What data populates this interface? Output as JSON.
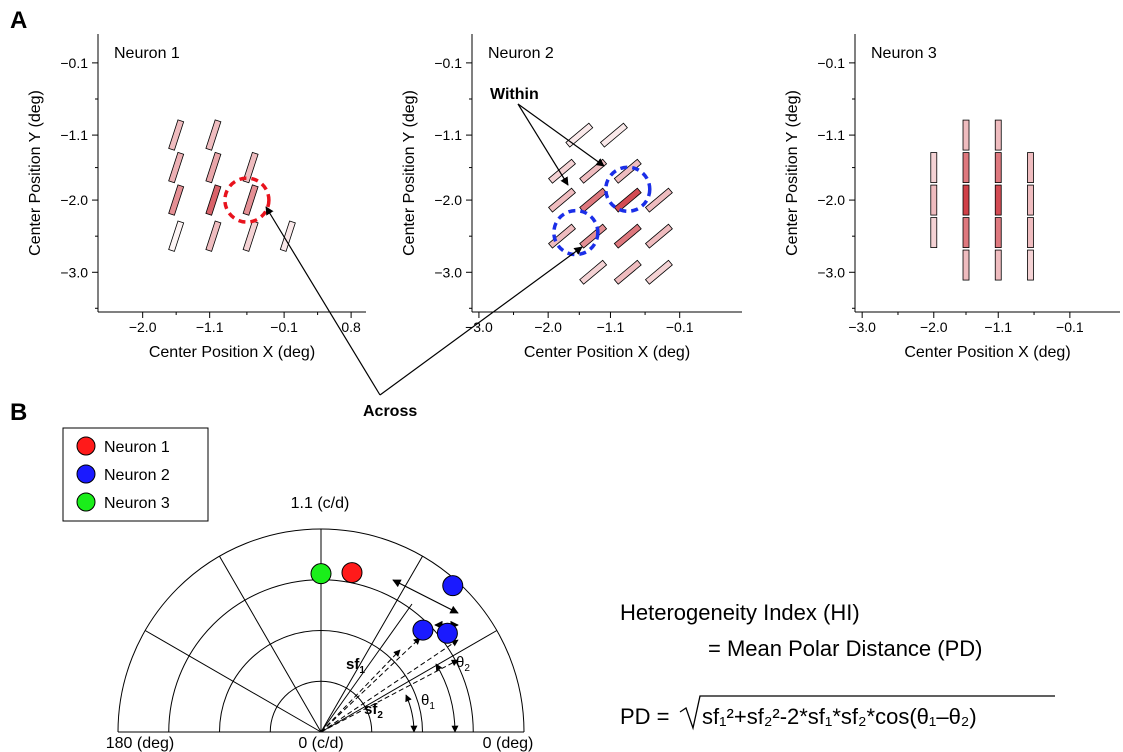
{
  "panel_labels": {
    "a": "A",
    "b": "B"
  },
  "annotations": {
    "within": "Within",
    "across": "Across"
  },
  "chart_data": [
    {
      "type": "scatter",
      "title": "Neuron 1",
      "xlabel": "Center Position X (deg)",
      "ylabel": "Center Position Y (deg)",
      "xticks": [
        "−2.0",
        "−1.1",
        "−0.1",
        "0.8"
      ],
      "yticks": [
        "−0.1",
        "−1.1",
        "−2.0",
        "−3.0"
      ],
      "xlim": [
        -2.6,
        1.0
      ],
      "ylim": [
        -3.55,
        0.3
      ],
      "bar_color": "#e8a5a5",
      "points": [
        {
          "x": -1.55,
          "y": -1.1,
          "ori": 18,
          "level": 0.3
        },
        {
          "x": -1.05,
          "y": -1.1,
          "ori": 18,
          "level": 0.3
        },
        {
          "x": -1.55,
          "y": -1.55,
          "ori": 18,
          "level": 0.35
        },
        {
          "x": -1.05,
          "y": -1.55,
          "ori": 18,
          "level": 0.4
        },
        {
          "x": -0.55,
          "y": -1.55,
          "ori": 18,
          "level": 0.3
        },
        {
          "x": -1.55,
          "y": -2.0,
          "ori": 18,
          "level": 0.5
        },
        {
          "x": -1.05,
          "y": -2.0,
          "ori": 18,
          "level": 0.7
        },
        {
          "x": -0.55,
          "y": -2.0,
          "ori": 18,
          "level": 0.5
        },
        {
          "x": -1.55,
          "y": -2.5,
          "ori": 18,
          "level": 0.05
        },
        {
          "x": -1.05,
          "y": -2.5,
          "ori": 18,
          "level": 0.3
        },
        {
          "x": -0.55,
          "y": -2.5,
          "ori": 18,
          "level": 0.2
        },
        {
          "x": -0.05,
          "y": -2.5,
          "ori": 18,
          "level": 0.1
        }
      ],
      "circles": [
        {
          "x": -0.6,
          "y": -2.0,
          "color": "#e8131d"
        }
      ]
    },
    {
      "type": "scatter",
      "title": "Neuron 2",
      "xlabel": "Center Position X (deg)",
      "ylabel": "Center Position Y (deg)",
      "xticks": [
        "−3.0",
        "−2.0",
        "−1.1",
        "−0.1"
      ],
      "yticks": [
        "−0.1",
        "−1.1",
        "−2.0",
        "−3.0"
      ],
      "xlim": [
        -3.1,
        0.8
      ],
      "ylim": [
        -3.55,
        0.3
      ],
      "bar_color": "#e8a5a5",
      "points": [
        {
          "x": -1.55,
          "y": -1.1,
          "ori": 50,
          "level": 0.1
        },
        {
          "x": -1.05,
          "y": -1.1,
          "ori": 50,
          "level": 0.1
        },
        {
          "x": -1.8,
          "y": -1.6,
          "ori": 50,
          "level": 0.2
        },
        {
          "x": -1.35,
          "y": -1.6,
          "ori": 50,
          "level": 0.3
        },
        {
          "x": -0.85,
          "y": -1.6,
          "ori": 50,
          "level": 0.3
        },
        {
          "x": -1.8,
          "y": -2.0,
          "ori": 50,
          "level": 0.3
        },
        {
          "x": -1.35,
          "y": -2.0,
          "ori": 50,
          "level": 0.6
        },
        {
          "x": -0.85,
          "y": -2.0,
          "ori": 50,
          "level": 0.8
        },
        {
          "x": -0.4,
          "y": -2.0,
          "ori": 50,
          "level": 0.3
        },
        {
          "x": -1.8,
          "y": -2.5,
          "ori": 50,
          "level": 0.3
        },
        {
          "x": -1.35,
          "y": -2.5,
          "ori": 50,
          "level": 0.5
        },
        {
          "x": -0.85,
          "y": -2.5,
          "ori": 50,
          "level": 0.6
        },
        {
          "x": -0.4,
          "y": -2.5,
          "ori": 50,
          "level": 0.3
        },
        {
          "x": -1.35,
          "y": -3.0,
          "ori": 50,
          "level": 0.2
        },
        {
          "x": -0.85,
          "y": -3.0,
          "ori": 50,
          "level": 0.3
        },
        {
          "x": -0.4,
          "y": -3.0,
          "ori": 50,
          "level": 0.2
        }
      ],
      "circles": [
        {
          "x": -0.85,
          "y": -1.85,
          "color": "#1a2ee8"
        },
        {
          "x": -1.6,
          "y": -2.45,
          "color": "#1a2ee8"
        }
      ]
    },
    {
      "type": "scatter",
      "title": "Neuron 3",
      "xlabel": "Center Position X (deg)",
      "ylabel": "Center Position Y (deg)",
      "xticks": [
        "−3.0",
        "−2.0",
        "−1.1",
        "−0.1"
      ],
      "yticks": [
        "−0.1",
        "−1.1",
        "−2.0",
        "−3.0"
      ],
      "xlim": [
        -3.1,
        0.6
      ],
      "ylim": [
        -3.55,
        0.3
      ],
      "bar_color": "#e8a5a5",
      "points": [
        {
          "x": -1.55,
          "y": -1.1,
          "ori": 0,
          "level": 0.3
        },
        {
          "x": -1.1,
          "y": -1.1,
          "ori": 0,
          "level": 0.3
        },
        {
          "x": -2.0,
          "y": -1.55,
          "ori": 0,
          "level": 0.2
        },
        {
          "x": -1.55,
          "y": -1.55,
          "ori": 0,
          "level": 0.6
        },
        {
          "x": -1.1,
          "y": -1.55,
          "ori": 0,
          "level": 0.6
        },
        {
          "x": -0.65,
          "y": -1.55,
          "ori": 0,
          "level": 0.3
        },
        {
          "x": -2.0,
          "y": -2.0,
          "ori": 0,
          "level": 0.3
        },
        {
          "x": -1.55,
          "y": -2.0,
          "ori": 0,
          "level": 0.85
        },
        {
          "x": -1.1,
          "y": -2.0,
          "ori": 0,
          "level": 0.8
        },
        {
          "x": -0.65,
          "y": -2.0,
          "ori": 0,
          "level": 0.3
        },
        {
          "x": -2.0,
          "y": -2.45,
          "ori": 0,
          "level": 0.2
        },
        {
          "x": -1.55,
          "y": -2.45,
          "ori": 0,
          "level": 0.6
        },
        {
          "x": -1.1,
          "y": -2.45,
          "ori": 0,
          "level": 0.6
        },
        {
          "x": -0.65,
          "y": -2.45,
          "ori": 0,
          "level": 0.3
        },
        {
          "x": -1.55,
          "y": -2.9,
          "ori": 0,
          "level": 0.3
        },
        {
          "x": -1.1,
          "y": -2.9,
          "ori": 0,
          "level": 0.3
        },
        {
          "x": -0.65,
          "y": -2.9,
          "ori": 0,
          "level": 0.2
        }
      ],
      "circles": []
    }
  ],
  "polar": {
    "legend": [
      {
        "label": "Neuron 1",
        "color": "#ff1a1a"
      },
      {
        "label": "Neuron 2",
        "color": "#1a1aff"
      },
      {
        "label": "Neuron 3",
        "color": "#1aee1a"
      }
    ],
    "top_label": "1.1 (c/d)",
    "left_label": "180 (deg)",
    "center_label": "0 (c/d)",
    "right_label": "0 (deg)",
    "sf1": "sf",
    "sf1_sub": "1",
    "sf2": "sf",
    "sf2_sub": "2",
    "theta1": "θ",
    "theta1_sub": "1",
    "theta2": "θ",
    "theta2_sub": "2",
    "points": [
      {
        "r": 0.78,
        "angle_deg": 90,
        "color": "#1aee1a"
      },
      {
        "r": 0.8,
        "angle_deg": 79,
        "color": "#ff1a1a"
      },
      {
        "r": 0.97,
        "angle_deg": 48,
        "color": "#1a1aff"
      },
      {
        "r": 0.71,
        "angle_deg": 45,
        "color": "#1a1aff"
      },
      {
        "r": 0.79,
        "angle_deg": 38,
        "color": "#1a1aff"
      }
    ]
  },
  "formula": {
    "line1": "Heterogeneity Index (HI)",
    "line2": "= Mean Polar Distance (PD)",
    "pd_lhs": "PD = ",
    "pd_rhs": "sf₁²+sf₂²-2*sf₁*sf₂*cos(θ₁–θ₂)"
  }
}
